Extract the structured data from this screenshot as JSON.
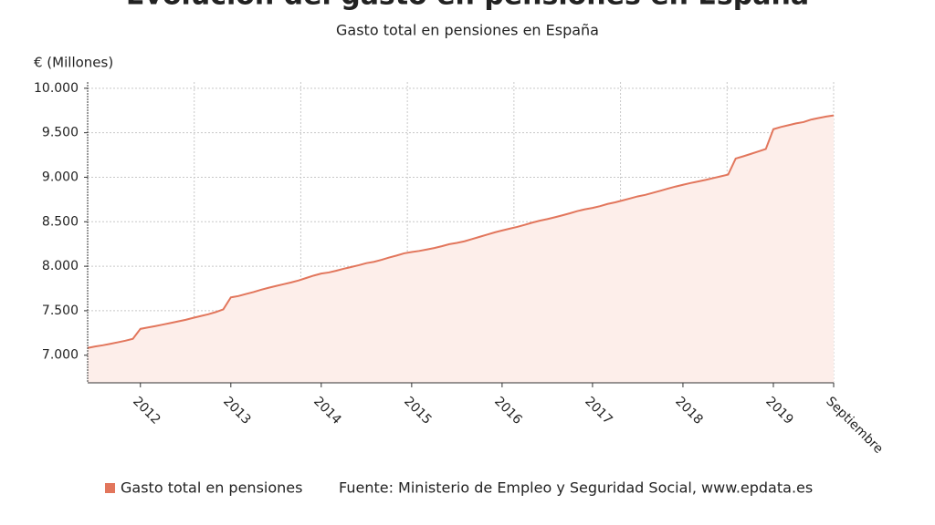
{
  "chart_data": {
    "type": "area-line",
    "title": "Evolución del gasto en pensiones en España",
    "subtitle": "Gasto total en pensiones en España",
    "y_label": "€ (Millones)",
    "source": "Fuente: Ministerio de Empleo y Seguridad Social, www.epdata.es",
    "categories": [
      null,
      null,
      null,
      null,
      null,
      null,
      null,
      "2012",
      null,
      null,
      null,
      null,
      null,
      null,
      null,
      null,
      null,
      null,
      null,
      "2013",
      null,
      null,
      null,
      null,
      null,
      null,
      null,
      null,
      null,
      null,
      null,
      "2014",
      null,
      null,
      null,
      null,
      null,
      null,
      null,
      null,
      null,
      null,
      null,
      "2015",
      null,
      null,
      null,
      null,
      null,
      null,
      null,
      null,
      null,
      null,
      null,
      "2016",
      null,
      null,
      null,
      null,
      null,
      null,
      null,
      null,
      null,
      null,
      null,
      "2017",
      null,
      null,
      null,
      null,
      null,
      null,
      null,
      null,
      null,
      null,
      null,
      "2018",
      null,
      null,
      null,
      null,
      null,
      null,
      null,
      null,
      null,
      null,
      null,
      "2019",
      null,
      null,
      null,
      null,
      null,
      null,
      null,
      "Septiembre"
    ],
    "series": [
      {
        "name": "Gasto total en pensiones",
        "color": "#e2765c",
        "fill": "#fdeeea",
        "values": [
          7082,
          7098,
          7112,
          7128,
          7145,
          7163,
          7184,
          7296,
          7312,
          7328,
          7345,
          7362,
          7380,
          7398,
          7420,
          7440,
          7460,
          7485,
          7515,
          7650,
          7665,
          7688,
          7710,
          7735,
          7758,
          7778,
          7798,
          7818,
          7840,
          7868,
          7895,
          7918,
          7930,
          7950,
          7972,
          7992,
          8012,
          8035,
          8050,
          8072,
          8098,
          8120,
          8145,
          8160,
          8172,
          8188,
          8205,
          8225,
          8248,
          8262,
          8280,
          8305,
          8330,
          8355,
          8380,
          8402,
          8422,
          8442,
          8465,
          8490,
          8512,
          8530,
          8550,
          8572,
          8595,
          8620,
          8640,
          8655,
          8675,
          8700,
          8718,
          8740,
          8762,
          8785,
          8802,
          8825,
          8848,
          8872,
          8895,
          8915,
          8935,
          8952,
          8970,
          8990,
          9010,
          9030,
          9210,
          9235,
          9262,
          9290,
          9318,
          9540,
          9565,
          9585,
          9605,
          9620,
          9648,
          9665,
          9682,
          9695
        ]
      }
    ],
    "ylim": [
      6690,
      10070
    ],
    "yticks": [
      {
        "value": 7000,
        "label": "7.000"
      },
      {
        "value": 7500,
        "label": "7.500"
      },
      {
        "value": 8000,
        "label": "8.000"
      },
      {
        "value": 8500,
        "label": "8.500"
      },
      {
        "value": 9000,
        "label": "9.000"
      },
      {
        "value": 9500,
        "label": "9.500"
      },
      {
        "value": 10000,
        "label": "10.000"
      }
    ],
    "grid": true
  }
}
